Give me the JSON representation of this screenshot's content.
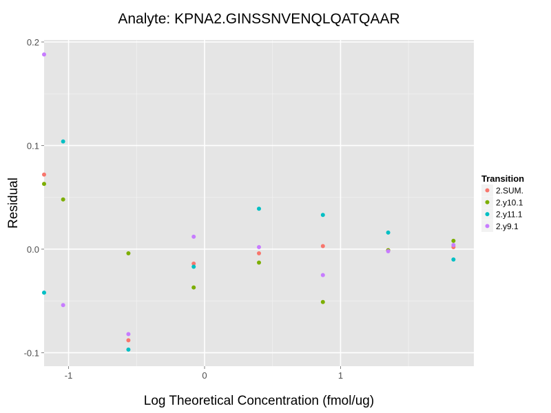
{
  "chart_data": {
    "type": "scatter",
    "title": "Analyte: KPNA2.GINSSNVENQLQATQAAR",
    "xlabel": "Log Theoretical Concentration (fmol/ug)",
    "ylabel": "Residual",
    "xlim": [
      -1.18,
      1.98
    ],
    "ylim": [
      -0.113,
      0.202
    ],
    "x_ticks": [
      -1,
      0,
      1
    ],
    "x_tick_labels": [
      "-1",
      "0",
      "1"
    ],
    "y_ticks": [
      -0.1,
      0.0,
      0.1,
      0.2
    ],
    "y_tick_labels": [
      "-0.1",
      "0.0",
      "0.1",
      "0.2"
    ],
    "grid": true,
    "legend": {
      "title": "Transition",
      "position": "right"
    },
    "series": [
      {
        "name": "2.SUM.",
        "color": "#F8766D",
        "x": [
          -1.18,
          -0.56,
          -0.08,
          0.4,
          0.87,
          1.35,
          1.83
        ],
        "y": [
          0.072,
          -0.088,
          -0.014,
          -0.004,
          0.003,
          -0.001,
          0.002
        ]
      },
      {
        "name": "2.y10.1",
        "color": "#7CAE00",
        "x": [
          -1.18,
          -1.04,
          -0.56,
          -0.08,
          0.4,
          0.87,
          1.35,
          1.83
        ],
        "y": [
          0.063,
          0.048,
          -0.004,
          -0.037,
          -0.013,
          -0.051,
          -0.001,
          0.008
        ]
      },
      {
        "name": "2.y11.1",
        "color": "#00BFC4",
        "x": [
          -1.18,
          -1.04,
          -0.56,
          -0.08,
          0.4,
          0.87,
          1.35,
          1.83
        ],
        "y": [
          -0.042,
          0.104,
          -0.097,
          -0.017,
          0.039,
          0.033,
          0.016,
          -0.01
        ]
      },
      {
        "name": "2.y9.1",
        "color": "#C77CFF",
        "x": [
          -1.18,
          -1.04,
          -0.56,
          -0.08,
          0.4,
          0.87,
          1.35,
          1.83
        ],
        "y": [
          0.188,
          -0.054,
          -0.082,
          0.012,
          0.002,
          -0.025,
          -0.002,
          0.004
        ]
      }
    ]
  }
}
